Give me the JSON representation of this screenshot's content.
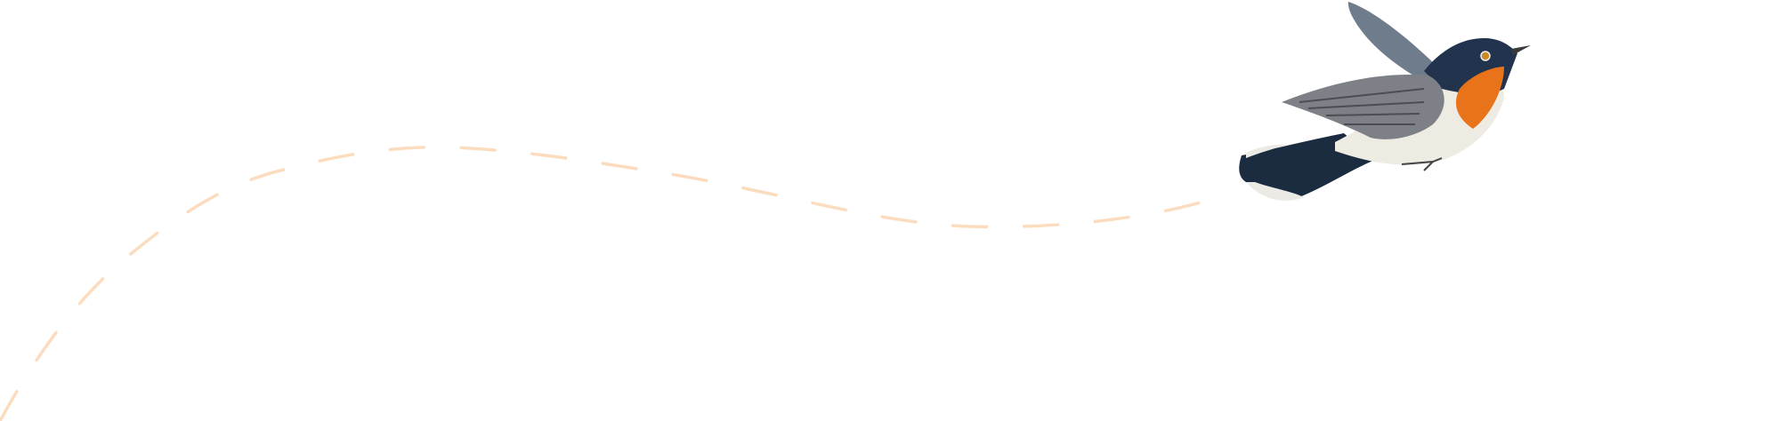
{
  "scene": {
    "illustration": "bird-flying-icon",
    "colors": {
      "background": "#ffffff",
      "flight_path": "#fcdcbf",
      "bird_throat": "#e8731a",
      "bird_back": "#1f3550",
      "bird_wing": "#7d8086",
      "bird_belly": "#eeebe3"
    }
  }
}
